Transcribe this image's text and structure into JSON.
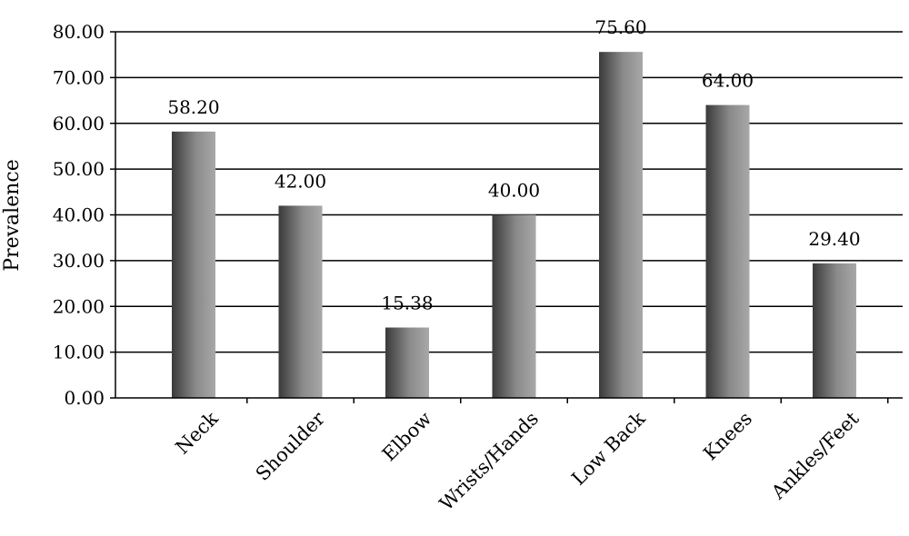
{
  "chart_data": {
    "type": "bar",
    "title": "",
    "xlabel": "",
    "ylabel": "Prevalence",
    "categories": [
      "Neck",
      "Shoulder",
      "Elbow",
      "Wrists/Hands",
      "Low Back",
      "Knees",
      "Ankles/Feet"
    ],
    "values": [
      58.2,
      42.0,
      15.38,
      40.0,
      75.6,
      64.0,
      29.4
    ],
    "data_labels": [
      "58.20",
      "42.00",
      "15.38",
      "40.00",
      "75.60",
      "64.00",
      "29.40"
    ],
    "ylim": [
      0,
      80
    ],
    "yticks": [
      "0.00",
      "10.00",
      "20.00",
      "30.00",
      "40.00",
      "50.00",
      "60.00",
      "70.00",
      "80.00"
    ],
    "ytick_values": [
      0,
      10,
      20,
      30,
      40,
      50,
      60,
      70,
      80
    ],
    "grid": true,
    "legend": "none",
    "colors": {
      "bar_dark": "#3a3a3a",
      "bar_mid": "#8a8a8a",
      "bar_light": "#a8a8a8",
      "grid": "#000000",
      "axis": "#000000"
    }
  }
}
